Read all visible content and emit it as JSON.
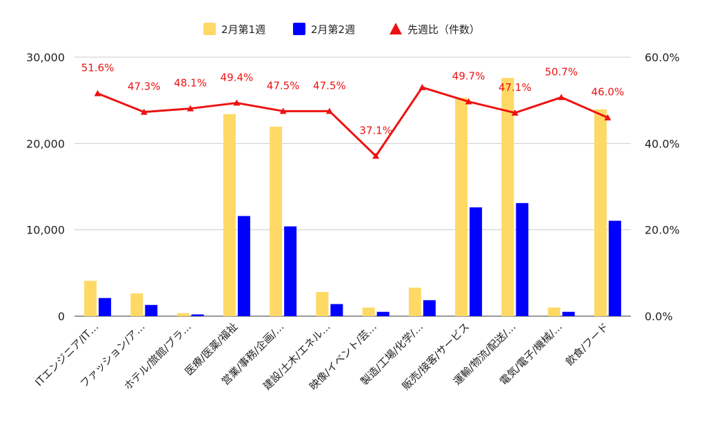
{
  "chart_data": {
    "type": "bar",
    "categories": [
      "ITエンジニア/IT…",
      "ファッション/ア…",
      "ホテル/旅館/ブラ…",
      "医療/医薬/福祉",
      "営業/事務/企画/…",
      "建設/土木/エネル…",
      "映像/イベント/芸…",
      "製造/工場/化学/…",
      "販売/接客/サービス",
      "運輸/物流/配送/…",
      "電気/電子/機械/…",
      "飲食/フード"
    ],
    "series": [
      {
        "name": "2月第1週",
        "color": "#ffd966",
        "axis": "left",
        "values": [
          4100,
          2650,
          350,
          23400,
          21950,
          2800,
          1000,
          3300,
          25300,
          27600,
          1000,
          23950
        ]
      },
      {
        "name": "2月第2週",
        "color": "#0000ff",
        "axis": "left",
        "values": [
          2100,
          1300,
          200,
          11600,
          10400,
          1400,
          500,
          1850,
          12600,
          13100,
          500,
          11050
        ]
      },
      {
        "name": "先週比（件数）",
        "type": "line",
        "color": "#ee1111",
        "axis": "right",
        "values": [
          51.6,
          47.3,
          48.1,
          49.4,
          47.5,
          47.5,
          37.1,
          53.0,
          49.7,
          47.1,
          50.7,
          46.0
        ],
        "labels": [
          "51.6%",
          "47.3%",
          "48.1%",
          "49.4%",
          "47.5%",
          "47.5%",
          "37.1%",
          "",
          "49.7%",
          "47.1%",
          "50.7%",
          "46.0%"
        ]
      }
    ],
    "y_left": {
      "range": [
        0,
        30000
      ],
      "ticks": [
        0,
        10000,
        20000,
        30000
      ],
      "tick_labels": [
        "0",
        "10,000",
        "20,000",
        "30,000"
      ]
    },
    "y_right": {
      "range": [
        0,
        60
      ],
      "ticks": [
        0,
        20,
        40,
        60
      ],
      "tick_labels": [
        "0.0%",
        "20.0%",
        "40.0%",
        "60.0%"
      ]
    },
    "grid": true,
    "legend": "top-center"
  }
}
